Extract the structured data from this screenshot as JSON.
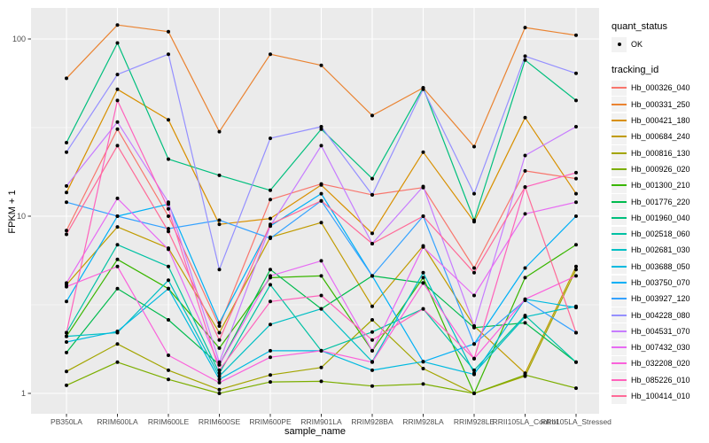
{
  "figure": {
    "y_axis_title": "FPKM + 1",
    "x_axis_title": "sample_name",
    "legend": {
      "quant_status_title": "quant_status",
      "quant_status_ok_label": "OK",
      "tracking_id_title": "tracking_id"
    },
    "colors": {
      "panel_background": "#EBEBEB",
      "gridline": "#FFFFFF",
      "point": "#000000",
      "axis_text": "#4D4D4D",
      "tick_mark": "#333333",
      "legend_key_background": "#F2F2F2"
    }
  },
  "chart_data": {
    "type": "line",
    "title": "",
    "xlabel": "sample_name",
    "ylabel": "FPKM + 1",
    "y_scale": "log10",
    "yticks": [
      1,
      10,
      100
    ],
    "ylim_log": [
      0.79,
      150
    ],
    "grid": "major-and-minor-horizontal, major-vertical",
    "legend_position": "right",
    "x_categories": [
      "PB350LA",
      "RRIM600LA",
      "RRIM600LE",
      "RRIM600SE",
      "RRIM600PE",
      "RRIM901LA",
      "RRIM928BA",
      "RRIM928LA",
      "RRIM928LE",
      "RRII105LA_Control",
      "RRII105LA_Stressed"
    ],
    "quant_status_all": "OK",
    "series": [
      {
        "name": "Hb_000326_040",
        "color": "#F8766D",
        "values": [
          8.3,
          31,
          10,
          2.4,
          12.4,
          15.2,
          13.2,
          14.5,
          5.1,
          18,
          16.3
        ]
      },
      {
        "name": "Hb_000331_250",
        "color": "#EA8331",
        "values": [
          60,
          120,
          110,
          30,
          82,
          71,
          37,
          53,
          24.7,
          116,
          105
        ]
      },
      {
        "name": "Hb_000421_180",
        "color": "#D89000",
        "values": [
          13.6,
          52,
          35,
          9,
          9.7,
          15,
          8,
          23,
          9.3,
          36,
          13.4
        ]
      },
      {
        "name": "Hb_000684_240",
        "color": "#C09B00",
        "values": [
          4.1,
          8.7,
          6.6,
          2.2,
          7.6,
          9.2,
          3.1,
          6.8,
          2.4,
          1.3,
          5.2
        ]
      },
      {
        "name": "Hb_000816_130",
        "color": "#A3A500",
        "values": [
          1.33,
          1.9,
          1.35,
          1.05,
          1.27,
          1.4,
          2.6,
          1.38,
          1.0,
          1.25,
          5.0
        ]
      },
      {
        "name": "Hb_000926_020",
        "color": "#7CAE00",
        "values": [
          1.11,
          1.5,
          1.2,
          1.0,
          1.16,
          1.17,
          1.1,
          1.13,
          1.0,
          1.27,
          1.07
        ]
      },
      {
        "name": "Hb_001300_210",
        "color": "#39B600",
        "values": [
          2.1,
          5.7,
          3.9,
          1.8,
          4.5,
          4.6,
          1.74,
          4.5,
          1.0,
          4.5,
          6.9
        ]
      },
      {
        "name": "Hb_001776_220",
        "color": "#00BB4E",
        "values": [
          1.7,
          3.9,
          2.6,
          1.45,
          5.0,
          3.0,
          4.6,
          4.2,
          2.35,
          2.5,
          1.5
        ]
      },
      {
        "name": "Hb_001960_040",
        "color": "#00BF7D",
        "values": [
          26,
          95,
          21,
          17,
          14,
          31,
          16.3,
          53,
          9.5,
          76,
          45
        ]
      },
      {
        "name": "Hb_002518_060",
        "color": "#00C1A3",
        "values": [
          2.2,
          6.9,
          5.2,
          1.3,
          4.1,
          1.74,
          2.22,
          3.0,
          1.35,
          2.75,
          1.5
        ]
      },
      {
        "name": "Hb_002681_030",
        "color": "#00BFC4",
        "values": [
          2.1,
          2.2,
          4.35,
          1.25,
          2.45,
          3.0,
          1.51,
          4.8,
          1.3,
          2.7,
          3.1
        ]
      },
      {
        "name": "Hb_003688_050",
        "color": "#00BAE0",
        "values": [
          1.95,
          2.24,
          3.9,
          1.2,
          1.74,
          1.74,
          1.35,
          1.51,
          1.28,
          3.4,
          3.05
        ]
      },
      {
        "name": "Hb_003750_070",
        "color": "#00B0F6",
        "values": [
          3.3,
          10,
          11.7,
          2.5,
          8.8,
          13.4,
          4.6,
          1.51,
          1.9,
          5.1,
          10
        ]
      },
      {
        "name": "Hb_003927_120",
        "color": "#35A2FF",
        "values": [
          12,
          10,
          8.5,
          9.5,
          7.5,
          12.2,
          4.6,
          10,
          1.9,
          3.35,
          2.2
        ]
      },
      {
        "name": "Hb_004228_080",
        "color": "#9590FF",
        "values": [
          23,
          63,
          82,
          5,
          27.5,
          32,
          13.2,
          52,
          13.4,
          80,
          64
        ]
      },
      {
        "name": "Hb_004531_070",
        "color": "#C77CFF",
        "values": [
          14.8,
          34,
          12,
          1.5,
          8.8,
          25,
          7,
          14.7,
          2.4,
          22,
          32
        ]
      },
      {
        "name": "Hb_007432_030",
        "color": "#E76BF3",
        "values": [
          4.2,
          12.6,
          6.5,
          1.45,
          4.6,
          5.6,
          1.74,
          6.7,
          3.57,
          10.3,
          12
        ]
      },
      {
        "name": "Hb_032208_020",
        "color": "#FA62DB",
        "values": [
          4.0,
          5.2,
          1.64,
          1.15,
          1.6,
          1.74,
          1.5,
          4.2,
          1.57,
          3.4,
          4.6
        ]
      },
      {
        "name": "Hb_085226_010",
        "color": "#FF62BC",
        "values": [
          2.2,
          45,
          11,
          1.35,
          3.3,
          3.57,
          2.0,
          3.0,
          1.57,
          14.6,
          17.6
        ]
      },
      {
        "name": "Hb_100414_010",
        "color": "#FF6A98",
        "values": [
          7.9,
          25,
          8.2,
          2.0,
          9.0,
          12.2,
          7.0,
          10,
          4.8,
          14.6,
          2.2
        ]
      }
    ]
  }
}
